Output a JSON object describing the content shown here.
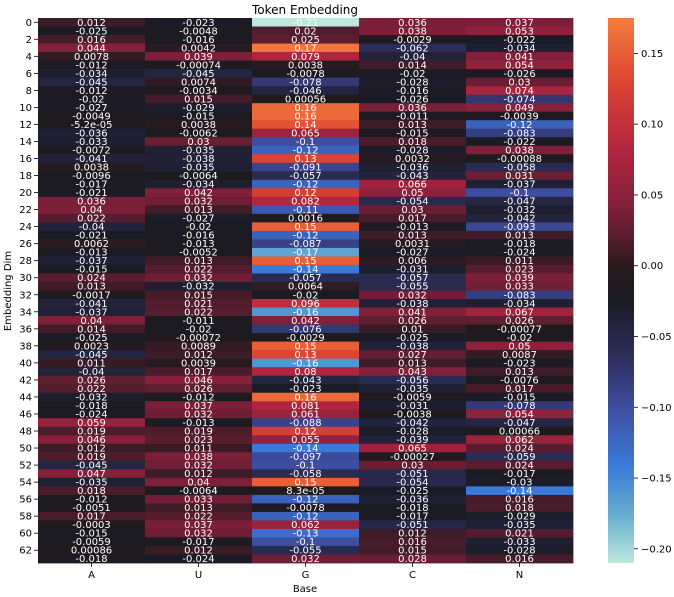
{
  "chart_data": {
    "type": "heatmap",
    "title": "Token Embedding",
    "xlabel": "Base",
    "ylabel": "Embedding Dim",
    "x_categories": [
      "A",
      "U",
      "G",
      "C",
      "N"
    ],
    "y_tick_labels": [
      "0",
      "2",
      "4",
      "6",
      "8",
      "10",
      "12",
      "14",
      "16",
      "18",
      "20",
      "22",
      "24",
      "26",
      "28",
      "30",
      "32",
      "34",
      "36",
      "38",
      "40",
      "42",
      "44",
      "46",
      "48",
      "50",
      "52",
      "54",
      "56",
      "58",
      "60",
      "62"
    ],
    "colorbar": {
      "vmin": -0.21,
      "vmax": 0.175,
      "ticks": [
        0.15,
        0.1,
        0.05,
        0.0,
        -0.05,
        -0.1,
        -0.15,
        -0.2
      ],
      "tick_labels": [
        "0.15",
        "0.10",
        "0.05",
        "0.00",
        "−0.05",
        "−0.10",
        "−0.15",
        "−0.20"
      ]
    },
    "colormap": "icefire",
    "values": [
      [
        0.012,
        -0.023,
        -0.21,
        0.036,
        0.037
      ],
      [
        -0.025,
        -0.0048,
        0.02,
        0.038,
        0.053
      ],
      [
        0.016,
        -0.016,
        0.025,
        -0.0029,
        -0.022
      ],
      [
        0.044,
        0.0042,
        0.17,
        -0.062,
        -0.034
      ],
      [
        0.0078,
        0.039,
        0.079,
        -0.04,
        0.041
      ],
      [
        -0.012,
        -0.00074,
        0.0038,
        0.014,
        0.054
      ],
      [
        -0.034,
        -0.045,
        -0.0078,
        -0.02,
        -0.026
      ],
      [
        -0.045,
        0.0074,
        -0.078,
        -0.028,
        0.03
      ],
      [
        -0.012,
        -0.0034,
        -0.046,
        -0.016,
        0.074
      ],
      [
        -0.02,
        0.015,
        0.00056,
        -0.026,
        -0.074
      ],
      [
        -0.027,
        -0.029,
        0.16,
        0.036,
        0.049
      ],
      [
        -0.0049,
        -0.015,
        0.16,
        -0.011,
        -0.0039
      ],
      [
        -5.2e-05,
        0.0038,
        0.14,
        0.013,
        -0.12
      ],
      [
        -0.036,
        -0.0062,
        0.065,
        -0.015,
        -0.083
      ],
      [
        -0.033,
        0.03,
        -0.1,
        0.018,
        -0.022
      ],
      [
        -0.0072,
        -0.035,
        -0.12,
        -0.028,
        0.038
      ],
      [
        -0.041,
        -0.038,
        0.13,
        0.0032,
        -0.00088
      ],
      [
        0.0038,
        -0.035,
        -0.091,
        -0.036,
        -0.058
      ],
      [
        -0.0096,
        -0.0064,
        -0.057,
        -0.043,
        0.031
      ],
      [
        -0.017,
        -0.034,
        -0.12,
        0.066,
        -0.037
      ],
      [
        -0.021,
        0.042,
        0.12,
        0.05,
        -0.1
      ],
      [
        0.036,
        0.032,
        0.082,
        -0.054,
        -0.047
      ],
      [
        0.04,
        0.013,
        -0.11,
        0.03,
        -0.032
      ],
      [
        0.022,
        -0.027,
        0.0016,
        0.017,
        -0.042
      ],
      [
        -0.04,
        -0.02,
        0.15,
        -0.013,
        -0.093
      ],
      [
        -0.021,
        -0.016,
        -0.12,
        0.013,
        0.013
      ],
      [
        0.0062,
        -0.013,
        -0.087,
        0.0031,
        -0.018
      ],
      [
        -0.013,
        -0.0052,
        -0.17,
        -0.027,
        -0.024
      ],
      [
        -0.037,
        0.013,
        0.15,
        0.006,
        0.011
      ],
      [
        -0.015,
        0.022,
        -0.14,
        -0.031,
        0.023
      ],
      [
        0.024,
        0.032,
        -0.057,
        -0.057,
        0.039
      ],
      [
        0.013,
        -0.032,
        0.0064,
        -0.055,
        0.033
      ],
      [
        -0.0017,
        0.015,
        -0.02,
        0.032,
        -0.083
      ],
      [
        -0.041,
        0.021,
        0.096,
        -0.038,
        -0.034
      ],
      [
        -0.037,
        0.022,
        -0.16,
        0.041,
        0.067
      ],
      [
        0.04,
        -0.011,
        0.042,
        0.026,
        0.026
      ],
      [
        0.014,
        -0.02,
        -0.076,
        0.01,
        -0.00077
      ],
      [
        -0.025,
        -0.00072,
        -0.0029,
        -0.025,
        -0.02
      ],
      [
        0.0023,
        0.0089,
        0.15,
        -0.038,
        0.05
      ],
      [
        -0.045,
        0.012,
        0.13,
        0.027,
        0.0087
      ],
      [
        0.011,
        0.0039,
        -0.16,
        0.013,
        -0.023
      ],
      [
        -0.04,
        0.017,
        0.08,
        0.043,
        0.013
      ],
      [
        0.026,
        0.046,
        -0.043,
        -0.056,
        -0.0076
      ],
      [
        0.022,
        0.026,
        -0.023,
        -0.035,
        0.017
      ],
      [
        -0.032,
        -0.012,
        0.16,
        -0.0059,
        -0.015
      ],
      [
        -0.018,
        0.037,
        0.081,
        -0.031,
        -0.078
      ],
      [
        -0.024,
        0.032,
        0.061,
        -0.0038,
        0.054
      ],
      [
        0.059,
        -0.013,
        -0.088,
        -0.042,
        -0.047
      ],
      [
        0.019,
        0.019,
        0.12,
        -0.028,
        0.00066
      ],
      [
        0.046,
        0.023,
        0.055,
        -0.039,
        0.062
      ],
      [
        0.012,
        0.011,
        -0.14,
        0.065,
        0.024
      ],
      [
        0.019,
        0.038,
        -0.097,
        -0.00027,
        -0.059
      ],
      [
        -0.045,
        0.032,
        -0.1,
        0.03,
        0.024
      ],
      [
        0.047,
        0.012,
        -0.058,
        -0.051,
        -0.017
      ],
      [
        -0.035,
        0.04,
        0.15,
        -0.054,
        -0.03
      ],
      [
        0.018,
        -0.0064,
        8.3e-05,
        -0.025,
        -0.14
      ],
      [
        -0.012,
        0.033,
        -0.12,
        -0.036,
        0.016
      ],
      [
        -0.0051,
        0.013,
        -0.0078,
        -0.018,
        0.018
      ],
      [
        0.017,
        0.022,
        -0.12,
        -0.017,
        -0.029
      ],
      [
        -0.0003,
        0.037,
        0.062,
        -0.051,
        -0.035
      ],
      [
        -0.015,
        0.032,
        -0.13,
        0.012,
        0.021
      ],
      [
        -0.0059,
        -0.017,
        -0.1,
        0.016,
        -0.033
      ],
      [
        0.00086,
        0.012,
        -0.055,
        0.015,
        -0.028
      ],
      [
        -0.018,
        -0.024,
        0.032,
        0.028,
        0.016
      ]
    ],
    "labels": [
      [
        "0.012",
        "-0.023",
        "-0.21",
        "0.036",
        "0.037"
      ],
      [
        "-0.025",
        "-0.0048",
        "0.02",
        "0.038",
        "0.053"
      ],
      [
        "0.016",
        "-0.016",
        "0.025",
        "-0.0029",
        "-0.022"
      ],
      [
        "0.044",
        "0.0042",
        "0.17",
        "-0.062",
        "-0.034"
      ],
      [
        "0.0078",
        "0.039",
        "0.079",
        "-0.04",
        "0.041"
      ],
      [
        "-0.012",
        "-0.00074",
        "0.0038",
        "0.014",
        "0.054"
      ],
      [
        "-0.034",
        "-0.045",
        "-0.0078",
        "-0.02",
        "-0.026"
      ],
      [
        "-0.045",
        "0.0074",
        "-0.078",
        "-0.028",
        "0.03"
      ],
      [
        "-0.012",
        "-0.0034",
        "-0.046",
        "-0.016",
        "0.074"
      ],
      [
        "-0.02",
        "0.015",
        "0.00056",
        "-0.026",
        "-0.074"
      ],
      [
        "-0.027",
        "-0.029",
        "0.16",
        "0.036",
        "0.049"
      ],
      [
        "-0.0049",
        "-0.015",
        "0.16",
        "-0.011",
        "-0.0039"
      ],
      [
        "-5.2e-05",
        "0.0038",
        "0.14",
        "0.013",
        "-0.12"
      ],
      [
        "-0.036",
        "-0.0062",
        "0.065",
        "-0.015",
        "-0.083"
      ],
      [
        "-0.033",
        "0.03",
        "-0.1",
        "0.018",
        "-0.022"
      ],
      [
        "-0.0072",
        "-0.035",
        "-0.12",
        "-0.028",
        "0.038"
      ],
      [
        "-0.041",
        "-0.038",
        "0.13",
        "0.0032",
        "-0.00088"
      ],
      [
        "0.0038",
        "-0.035",
        "-0.091",
        "-0.036",
        "-0.058"
      ],
      [
        "-0.0096",
        "-0.0064",
        "-0.057",
        "-0.043",
        "0.031"
      ],
      [
        "-0.017",
        "-0.034",
        "-0.12",
        "0.066",
        "-0.037"
      ],
      [
        "-0.021",
        "0.042",
        "0.12",
        "0.05",
        "-0.1"
      ],
      [
        "0.036",
        "0.032",
        "0.082",
        "-0.054",
        "-0.047"
      ],
      [
        "0.04",
        "0.013",
        "-0.11",
        "0.03",
        "-0.032"
      ],
      [
        "0.022",
        "-0.027",
        "0.0016",
        "0.017",
        "-0.042"
      ],
      [
        "-0.04",
        "-0.02",
        "0.15",
        "-0.013",
        "-0.093"
      ],
      [
        "-0.021",
        "-0.016",
        "-0.12",
        "0.013",
        "0.013"
      ],
      [
        "0.0062",
        "-0.013",
        "-0.087",
        "0.0031",
        "-0.018"
      ],
      [
        "-0.013",
        "-0.0052",
        "-0.17",
        "-0.027",
        "-0.024"
      ],
      [
        "-0.037",
        "0.013",
        "0.15",
        "0.006",
        "0.011"
      ],
      [
        "-0.015",
        "0.022",
        "-0.14",
        "-0.031",
        "0.023"
      ],
      [
        "0.024",
        "0.032",
        "-0.057",
        "-0.057",
        "0.039"
      ],
      [
        "0.013",
        "-0.032",
        "0.0064",
        "-0.055",
        "0.033"
      ],
      [
        "-0.0017",
        "0.015",
        "-0.02",
        "0.032",
        "-0.083"
      ],
      [
        "-0.041",
        "0.021",
        "0.096",
        "-0.038",
        "-0.034"
      ],
      [
        "-0.037",
        "0.022",
        "-0.16",
        "0.041",
        "0.067"
      ],
      [
        "0.04",
        "-0.011",
        "0.042",
        "0.026",
        "0.026"
      ],
      [
        "0.014",
        "-0.02",
        "-0.076",
        "0.01",
        "-0.00077"
      ],
      [
        "-0.025",
        "-0.00072",
        "-0.0029",
        "-0.025",
        "-0.02"
      ],
      [
        "0.0023",
        "0.0089",
        "0.15",
        "-0.038",
        "0.05"
      ],
      [
        "-0.045",
        "0.012",
        "0.13",
        "0.027",
        "0.0087"
      ],
      [
        "0.011",
        "0.0039",
        "-0.16",
        "0.013",
        "-0.023"
      ],
      [
        "-0.04",
        "0.017",
        "0.08",
        "0.043",
        "0.013"
      ],
      [
        "0.026",
        "0.046",
        "-0.043",
        "-0.056",
        "-0.0076"
      ],
      [
        "0.022",
        "0.026",
        "-0.023",
        "-0.035",
        "0.017"
      ],
      [
        "-0.032",
        "-0.012",
        "0.16",
        "-0.0059",
        "-0.015"
      ],
      [
        "-0.018",
        "0.037",
        "0.081",
        "-0.031",
        "-0.078"
      ],
      [
        "-0.024",
        "0.032",
        "0.061",
        "-0.0038",
        "0.054"
      ],
      [
        "0.059",
        "-0.013",
        "-0.088",
        "-0.042",
        "-0.047"
      ],
      [
        "0.019",
        "0.019",
        "0.12",
        "-0.028",
        "0.00066"
      ],
      [
        "0.046",
        "0.023",
        "0.055",
        "-0.039",
        "0.062"
      ],
      [
        "0.012",
        "0.011",
        "-0.14",
        "0.065",
        "0.024"
      ],
      [
        "0.019",
        "0.038",
        "-0.097",
        "-0.00027",
        "-0.059"
      ],
      [
        "-0.045",
        "0.032",
        "-0.1",
        "0.03",
        "0.024"
      ],
      [
        "0.047",
        "0.012",
        "-0.058",
        "-0.051",
        "-0.017"
      ],
      [
        "-0.035",
        "0.04",
        "0.15",
        "-0.054",
        "-0.03"
      ],
      [
        "0.018",
        "-0.0064",
        "8.3e-05",
        "-0.025",
        "-0.14"
      ],
      [
        "-0.012",
        "0.033",
        "-0.12",
        "-0.036",
        "0.016"
      ],
      [
        "-0.0051",
        "0.013",
        "-0.0078",
        "-0.018",
        "0.018"
      ],
      [
        "0.017",
        "0.022",
        "-0.12",
        "-0.017",
        "-0.029"
      ],
      [
        "-0.0003",
        "0.037",
        "0.062",
        "-0.051",
        "-0.035"
      ],
      [
        "-0.015",
        "0.032",
        "-0.13",
        "0.012",
        "0.021"
      ],
      [
        "-0.0059",
        "-0.017",
        "-0.1",
        "0.016",
        "-0.033"
      ],
      [
        "0.00086",
        "0.012",
        "-0.055",
        "0.015",
        "-0.028"
      ],
      [
        "-0.018",
        "-0.024",
        "0.032",
        "0.028",
        "0.016"
      ]
    ]
  }
}
